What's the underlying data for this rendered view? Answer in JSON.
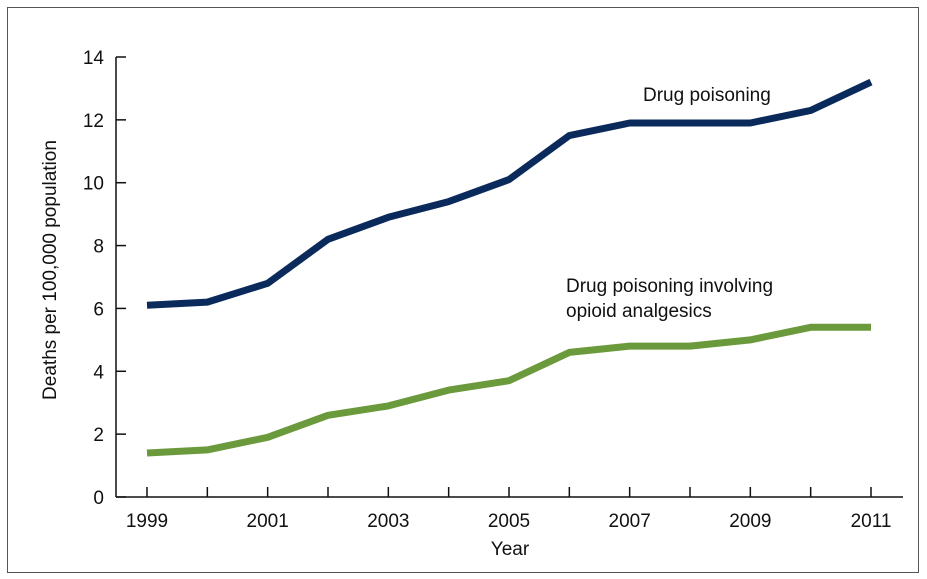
{
  "chart_data": {
    "type": "line",
    "title": "",
    "xlabel": "Year",
    "ylabel": "Deaths per 100,000 population",
    "x": [
      1999,
      2000,
      2001,
      2002,
      2003,
      2004,
      2005,
      2006,
      2007,
      2008,
      2009,
      2010,
      2011
    ],
    "xticks": [
      "1999",
      "2001",
      "2003",
      "2005",
      "2007",
      "2009",
      "2011"
    ],
    "yticks": [
      "0",
      "2",
      "4",
      "6",
      "8",
      "10",
      "12",
      "14"
    ],
    "ylim": [
      0,
      14
    ],
    "grid": false,
    "series": [
      {
        "name": "Drug poisoning",
        "label_lines": [
          "Drug poisoning"
        ],
        "color": "#0a2a5c",
        "values": [
          6.1,
          6.2,
          6.8,
          8.2,
          8.9,
          9.4,
          10.1,
          11.5,
          11.9,
          11.9,
          11.9,
          12.3,
          13.2
        ]
      },
      {
        "name": "Drug poisoning involving opioid analgesics",
        "label_lines": [
          "Drug poisoning involving",
          "opioid analgesics"
        ],
        "color": "#6a9a3c",
        "values": [
          1.4,
          1.5,
          1.9,
          2.6,
          2.9,
          3.4,
          3.7,
          4.6,
          4.8,
          4.8,
          5.0,
          5.4,
          5.4
        ]
      }
    ]
  }
}
